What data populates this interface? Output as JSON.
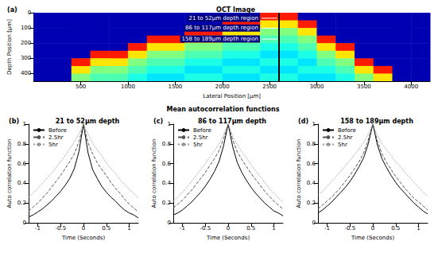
{
  "group_title": "Mean autocorrelation functions",
  "chart_data": [
    {
      "type": "heatmap",
      "panel": "(a)",
      "title": "OCT Image",
      "x_label": "Lateral Position [μm]",
      "y_label": "Depth Position [μm]",
      "xlim": [
        0,
        4200
      ],
      "xticks": [
        500,
        1000,
        1500,
        2000,
        2500,
        3000,
        3500,
        4000
      ],
      "ylim": [
        0,
        450
      ],
      "yticks": [
        0,
        100,
        200,
        300,
        400
      ],
      "x_edges": [
        0,
        200,
        400,
        600,
        800,
        1000,
        1200,
        1400,
        1600,
        1800,
        2000,
        2200,
        2400,
        2600,
        2800,
        3000,
        3200,
        3400,
        3600,
        3800,
        4000,
        4200
      ],
      "y_edges": [
        0,
        50,
        100,
        150,
        200,
        250,
        300,
        350,
        400,
        450
      ],
      "zlim": [
        0,
        1
      ],
      "cells": [
        [
          0.05,
          0.05,
          0.05,
          0.05,
          0.05,
          0.05,
          0.05,
          0.05,
          0.05,
          0.05,
          0.05,
          0.05,
          0.85,
          0.85,
          0.05,
          0.05,
          0.05,
          0.05,
          0.05,
          0.05,
          0.05
        ],
        [
          0.05,
          0.05,
          0.05,
          0.05,
          0.05,
          0.05,
          0.05,
          0.05,
          0.05,
          0.05,
          0.85,
          0.85,
          0.65,
          0.65,
          0.85,
          0.05,
          0.05,
          0.05,
          0.05,
          0.05,
          0.05
        ],
        [
          0.05,
          0.05,
          0.05,
          0.05,
          0.05,
          0.05,
          0.05,
          0.05,
          0.85,
          0.85,
          0.65,
          0.65,
          0.5,
          0.5,
          0.65,
          0.05,
          0.05,
          0.05,
          0.05,
          0.05,
          0.05
        ],
        [
          0.05,
          0.05,
          0.05,
          0.05,
          0.05,
          0.05,
          0.85,
          0.85,
          0.65,
          0.65,
          0.5,
          0.5,
          0.45,
          0.45,
          0.5,
          0.85,
          0.05,
          0.05,
          0.05,
          0.05,
          0.05
        ],
        [
          0.05,
          0.05,
          0.05,
          0.05,
          0.05,
          0.85,
          0.65,
          0.65,
          0.5,
          0.5,
          0.45,
          0.45,
          0.4,
          0.4,
          0.45,
          0.65,
          0.85,
          0.05,
          0.05,
          0.05,
          0.05
        ],
        [
          0.05,
          0.05,
          0.05,
          0.85,
          0.85,
          0.65,
          0.5,
          0.5,
          0.45,
          0.45,
          0.4,
          0.4,
          0.35,
          0.35,
          0.4,
          0.5,
          0.65,
          0.05,
          0.05,
          0.05,
          0.05
        ],
        [
          0.05,
          0.05,
          0.85,
          0.65,
          0.65,
          0.5,
          0.45,
          0.45,
          0.4,
          0.4,
          0.35,
          0.35,
          0.4,
          0.4,
          0.35,
          0.45,
          0.5,
          0.85,
          0.05,
          0.05,
          0.05
        ],
        [
          0.05,
          0.05,
          0.65,
          0.5,
          0.5,
          0.45,
          0.4,
          0.4,
          0.35,
          0.35,
          0.4,
          0.4,
          0.35,
          0.35,
          0.4,
          0.4,
          0.45,
          0.65,
          0.85,
          0.05,
          0.05
        ],
        [
          0.05,
          0.05,
          0.5,
          0.45,
          0.45,
          0.4,
          0.35,
          0.35,
          0.4,
          0.4,
          0.35,
          0.35,
          0.4,
          0.4,
          0.35,
          0.35,
          0.4,
          0.5,
          0.65,
          0.05,
          0.05
        ]
      ],
      "vline_x": 2600,
      "annotations": [
        {
          "text": "21 to 52μm depth region",
          "x": 2600,
          "y": 36
        },
        {
          "text": "86 to 117μm depth region",
          "x": 2600,
          "y": 101
        },
        {
          "text": "158 to 189μm depth region",
          "x": 2600,
          "y": 173
        }
      ],
      "grid": false
    },
    {
      "type": "line",
      "panel": "(b)",
      "title": "21 to 52μm depth",
      "x_label": "Time (Seconds)",
      "y_label": "Auto correlation function",
      "x": [
        -1.2,
        -1.1,
        -1,
        -0.9,
        -0.8,
        -0.7,
        -0.6,
        -0.5,
        -0.4,
        -0.3,
        -0.2,
        -0.1,
        0,
        0.1,
        0.2,
        0.3,
        0.4,
        0.5,
        0.6,
        0.7,
        0.8,
        0.9,
        1,
        1.1,
        1.2
      ],
      "series": [
        {
          "name": "Before",
          "color": "#000000",
          "line_style": "solid",
          "values": [
            0.06,
            0.08,
            0.11,
            0.14,
            0.18,
            0.22,
            0.27,
            0.32,
            0.38,
            0.45,
            0.55,
            0.72,
            1,
            0.71,
            0.54,
            0.45,
            0.37,
            0.31,
            0.26,
            0.22,
            0.17,
            0.13,
            0.1,
            0.08,
            0.05
          ]
        },
        {
          "name": "2.5hr",
          "color": "#555555",
          "line_style": "dashed",
          "values": [
            0.12,
            0.16,
            0.2,
            0.25,
            0.3,
            0.36,
            0.42,
            0.48,
            0.55,
            0.62,
            0.7,
            0.82,
            1,
            0.81,
            0.7,
            0.61,
            0.54,
            0.48,
            0.41,
            0.35,
            0.3,
            0.24,
            0.19,
            0.15,
            0.11
          ]
        },
        {
          "name": "5hr",
          "color": "#999999",
          "line_style": "dotted",
          "values": [
            0.26,
            0.3,
            0.35,
            0.4,
            0.45,
            0.5,
            0.56,
            0.62,
            0.68,
            0.75,
            0.82,
            0.9,
            1,
            0.9,
            0.81,
            0.74,
            0.68,
            0.61,
            0.55,
            0.5,
            0.44,
            0.39,
            0.34,
            0.3,
            0.25
          ]
        }
      ],
      "xlim": [
        -1.2,
        1.2
      ],
      "xticks": [
        -1,
        -0.5,
        0,
        0.5,
        1
      ],
      "ylim": [
        0,
        1
      ],
      "yticks": [
        0,
        0.2,
        0.4,
        0.6,
        0.8,
        1
      ],
      "legend": "upper left",
      "grid": false
    },
    {
      "type": "line",
      "panel": "(c)",
      "title": "86 to 117μm depth",
      "x_label": "Time (Seconds)",
      "y_label": "Auto correlation function",
      "x": [
        -1.2,
        -1.1,
        -1,
        -0.9,
        -0.8,
        -0.7,
        -0.6,
        -0.5,
        -0.4,
        -0.3,
        -0.2,
        -0.1,
        0,
        0.1,
        0.2,
        0.3,
        0.4,
        0.5,
        0.6,
        0.7,
        0.8,
        0.9,
        1,
        1.1,
        1.2
      ],
      "series": [
        {
          "name": "Before",
          "color": "#000000",
          "line_style": "solid",
          "values": [
            0.08,
            0.1,
            0.13,
            0.17,
            0.21,
            0.26,
            0.31,
            0.37,
            0.44,
            0.52,
            0.62,
            0.78,
            1,
            0.77,
            0.61,
            0.51,
            0.43,
            0.36,
            0.3,
            0.25,
            0.2,
            0.16,
            0.12,
            0.1,
            0.07
          ]
        },
        {
          "name": "2.5hr",
          "color": "#555555",
          "line_style": "dashed",
          "values": [
            0.15,
            0.19,
            0.23,
            0.28,
            0.33,
            0.39,
            0.45,
            0.51,
            0.58,
            0.65,
            0.73,
            0.85,
            1,
            0.84,
            0.72,
            0.64,
            0.57,
            0.5,
            0.44,
            0.38,
            0.32,
            0.27,
            0.22,
            0.18,
            0.14
          ]
        },
        {
          "name": "5hr",
          "color": "#999999",
          "line_style": "dotted",
          "values": [
            0.22,
            0.26,
            0.31,
            0.36,
            0.42,
            0.48,
            0.54,
            0.6,
            0.67,
            0.73,
            0.8,
            0.89,
            1,
            0.88,
            0.79,
            0.72,
            0.66,
            0.59,
            0.53,
            0.47,
            0.41,
            0.35,
            0.3,
            0.25,
            0.21
          ]
        }
      ],
      "xlim": [
        -1.2,
        1.2
      ],
      "xticks": [
        -1,
        -0.5,
        0,
        0.5,
        1
      ],
      "ylim": [
        0,
        1
      ],
      "yticks": [
        0,
        0.2,
        0.4,
        0.6,
        0.8,
        1
      ],
      "legend": "upper left",
      "grid": false
    },
    {
      "type": "line",
      "panel": "(d)",
      "title": "158 to 189μm depth",
      "x_label": "Time (Seconds)",
      "y_label": "Auto correlation function",
      "x": [
        -1.2,
        -1.1,
        -1,
        -0.9,
        -0.8,
        -0.7,
        -0.6,
        -0.5,
        -0.4,
        -0.3,
        -0.2,
        -0.1,
        0,
        0.1,
        0.2,
        0.3,
        0.4,
        0.5,
        0.6,
        0.7,
        0.8,
        0.9,
        1,
        1.1,
        1.2
      ],
      "series": [
        {
          "name": "Before",
          "color": "#000000",
          "line_style": "solid",
          "values": [
            0.1,
            0.13,
            0.17,
            0.21,
            0.26,
            0.31,
            0.36,
            0.42,
            0.49,
            0.57,
            0.66,
            0.8,
            1,
            0.79,
            0.65,
            0.56,
            0.48,
            0.41,
            0.35,
            0.3,
            0.25,
            0.2,
            0.16,
            0.12,
            0.09
          ]
        },
        {
          "name": "2.5hr",
          "color": "#555555",
          "line_style": "dashed",
          "values": [
            0.14,
            0.18,
            0.22,
            0.26,
            0.31,
            0.36,
            0.42,
            0.48,
            0.55,
            0.62,
            0.71,
            0.84,
            1,
            0.83,
            0.7,
            0.61,
            0.54,
            0.47,
            0.41,
            0.35,
            0.3,
            0.25,
            0.21,
            0.17,
            0.13
          ]
        },
        {
          "name": "5hr",
          "color": "#999999",
          "line_style": "dotted",
          "values": [
            0.28,
            0.32,
            0.37,
            0.42,
            0.47,
            0.52,
            0.58,
            0.63,
            0.69,
            0.75,
            0.81,
            0.9,
            1,
            0.89,
            0.8,
            0.74,
            0.68,
            0.62,
            0.57,
            0.51,
            0.46,
            0.41,
            0.36,
            0.31,
            0.27
          ]
        }
      ],
      "xlim": [
        -1.2,
        1.2
      ],
      "xticks": [
        -1,
        -0.5,
        0,
        0.5,
        1
      ],
      "ylim": [
        0,
        1
      ],
      "yticks": [
        0,
        0.2,
        0.4,
        0.6,
        0.8,
        1
      ],
      "legend": "upper left",
      "grid": false
    }
  ]
}
